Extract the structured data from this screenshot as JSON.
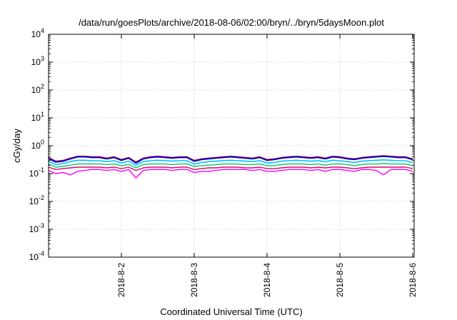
{
  "chart_data": {
    "type": "line",
    "title": "/data/run/goesPlots/archive/2018-08-06/02:00/bryn/../bryn/5daysMoon.plot",
    "xlabel": "Coordinated Universal Time (UTC)",
    "ylabel": "cGy/day",
    "yscale": "log",
    "ylim": [
      0.0001,
      10000
    ],
    "xlim": [
      0,
      5.02
    ],
    "grid": true,
    "legend": "none",
    "y_ticks": [
      {
        "value": 0.0001,
        "base": "10",
        "exp": "-4"
      },
      {
        "value": 0.001,
        "base": "10",
        "exp": "-3"
      },
      {
        "value": 0.01,
        "base": "10",
        "exp": "-2"
      },
      {
        "value": 0.1,
        "base": "10",
        "exp": "-1"
      },
      {
        "value": 1,
        "base": "10",
        "exp": "0"
      },
      {
        "value": 10,
        "base": "10",
        "exp": "1"
      },
      {
        "value": 100,
        "base": "10",
        "exp": "2"
      },
      {
        "value": 1000,
        "base": "10",
        "exp": "3"
      },
      {
        "value": 10000,
        "base": "10",
        "exp": "4"
      }
    ],
    "x_ticks": [
      {
        "value": 1,
        "label": "2018-8-2"
      },
      {
        "value": 2,
        "label": "2018-8-3"
      },
      {
        "value": 3,
        "label": "2018-8-4"
      },
      {
        "value": 4,
        "label": "2018-8-5"
      },
      {
        "value": 5,
        "label": "2018-8-6"
      }
    ],
    "series": [
      {
        "color": "#ff00ff",
        "width": 1.4,
        "x": [
          0,
          0.1,
          0.2,
          0.3,
          0.4,
          0.5,
          0.6,
          0.7,
          0.8,
          0.9,
          1.0,
          1.1,
          1.2,
          1.3,
          1.4,
          1.5,
          1.6,
          1.7,
          1.8,
          1.9,
          2.0,
          2.1,
          2.2,
          2.3,
          2.4,
          2.5,
          2.6,
          2.7,
          2.8,
          2.9,
          3.0,
          3.1,
          3.2,
          3.3,
          3.4,
          3.5,
          3.6,
          3.7,
          3.8,
          3.9,
          4.0,
          4.1,
          4.2,
          4.3,
          4.4,
          4.5,
          4.6,
          4.7,
          4.8,
          4.9,
          5.0
        ],
        "y": [
          0.13,
          0.1,
          0.11,
          0.09,
          0.12,
          0.13,
          0.14,
          0.14,
          0.13,
          0.14,
          0.12,
          0.14,
          0.07,
          0.13,
          0.14,
          0.14,
          0.14,
          0.13,
          0.14,
          0.14,
          0.11,
          0.12,
          0.12,
          0.13,
          0.14,
          0.14,
          0.14,
          0.14,
          0.13,
          0.14,
          0.12,
          0.12,
          0.13,
          0.14,
          0.14,
          0.14,
          0.13,
          0.14,
          0.12,
          0.14,
          0.14,
          0.13,
          0.12,
          0.14,
          0.14,
          0.13,
          0.09,
          0.14,
          0.14,
          0.14,
          0.12
        ]
      },
      {
        "color": "#ff0000",
        "width": 1.4,
        "x": [
          0,
          0.1,
          0.2,
          0.3,
          0.4,
          0.5,
          0.6,
          0.7,
          0.8,
          0.9,
          1.0,
          1.1,
          1.2,
          1.3,
          1.4,
          1.5,
          1.6,
          1.7,
          1.8,
          1.9,
          2.0,
          2.1,
          2.2,
          2.3,
          2.4,
          2.5,
          2.6,
          2.7,
          2.8,
          2.9,
          3.0,
          3.1,
          3.2,
          3.3,
          3.4,
          3.5,
          3.6,
          3.7,
          3.8,
          3.9,
          4.0,
          4.1,
          4.2,
          4.3,
          4.4,
          4.5,
          4.6,
          4.7,
          4.8,
          4.9,
          5.0
        ],
        "y": [
          0.38,
          0.28,
          0.3,
          0.36,
          0.42,
          0.42,
          0.4,
          0.4,
          0.36,
          0.4,
          0.32,
          0.38,
          0.26,
          0.36,
          0.4,
          0.42,
          0.4,
          0.38,
          0.4,
          0.4,
          0.3,
          0.34,
          0.36,
          0.38,
          0.4,
          0.42,
          0.4,
          0.38,
          0.36,
          0.4,
          0.32,
          0.34,
          0.38,
          0.4,
          0.42,
          0.4,
          0.38,
          0.4,
          0.36,
          0.42,
          0.4,
          0.36,
          0.34,
          0.38,
          0.4,
          0.42,
          0.44,
          0.42,
          0.4,
          0.4,
          0.34
        ]
      },
      {
        "color": "#0000cc",
        "width": 2,
        "x": [
          0,
          0.1,
          0.2,
          0.3,
          0.4,
          0.5,
          0.6,
          0.7,
          0.8,
          0.9,
          1.0,
          1.1,
          1.2,
          1.3,
          1.4,
          1.5,
          1.6,
          1.7,
          1.8,
          1.9,
          2.0,
          2.1,
          2.2,
          2.3,
          2.4,
          2.5,
          2.6,
          2.7,
          2.8,
          2.9,
          3.0,
          3.1,
          3.2,
          3.3,
          3.4,
          3.5,
          3.6,
          3.7,
          3.8,
          3.9,
          4.0,
          4.1,
          4.2,
          4.3,
          4.4,
          4.5,
          4.6,
          4.7,
          4.8,
          4.9,
          5.0
        ],
        "y": [
          0.35,
          0.26,
          0.28,
          0.34,
          0.4,
          0.4,
          0.38,
          0.38,
          0.34,
          0.38,
          0.3,
          0.36,
          0.24,
          0.34,
          0.38,
          0.4,
          0.38,
          0.36,
          0.38,
          0.38,
          0.28,
          0.32,
          0.34,
          0.36,
          0.38,
          0.4,
          0.38,
          0.36,
          0.34,
          0.38,
          0.3,
          0.32,
          0.36,
          0.38,
          0.4,
          0.38,
          0.36,
          0.38,
          0.34,
          0.4,
          0.38,
          0.34,
          0.32,
          0.36,
          0.38,
          0.4,
          0.42,
          0.4,
          0.38,
          0.38,
          0.32
        ]
      },
      {
        "color": "#00bfff",
        "width": 1.6,
        "x": [
          0,
          0.1,
          0.2,
          0.3,
          0.4,
          0.5,
          0.6,
          0.7,
          0.8,
          0.9,
          1.0,
          1.1,
          1.2,
          1.3,
          1.4,
          1.5,
          1.6,
          1.7,
          1.8,
          1.9,
          2.0,
          2.1,
          2.2,
          2.3,
          2.4,
          2.5,
          2.6,
          2.7,
          2.8,
          2.9,
          3.0,
          3.1,
          3.2,
          3.3,
          3.4,
          3.5,
          3.6,
          3.7,
          3.8,
          3.9,
          4.0,
          4.1,
          4.2,
          4.3,
          4.4,
          4.5,
          4.6,
          4.7,
          4.8,
          4.9,
          5.0
        ],
        "y": [
          0.28,
          0.21,
          0.23,
          0.27,
          0.3,
          0.3,
          0.29,
          0.29,
          0.27,
          0.29,
          0.24,
          0.28,
          0.2,
          0.27,
          0.29,
          0.3,
          0.29,
          0.28,
          0.29,
          0.29,
          0.22,
          0.25,
          0.27,
          0.28,
          0.29,
          0.3,
          0.29,
          0.28,
          0.27,
          0.29,
          0.24,
          0.25,
          0.28,
          0.29,
          0.3,
          0.29,
          0.28,
          0.29,
          0.27,
          0.3,
          0.29,
          0.27,
          0.25,
          0.28,
          0.29,
          0.3,
          0.31,
          0.3,
          0.29,
          0.29,
          0.25
        ]
      },
      {
        "color": "#00cc66",
        "width": 1.4,
        "x": [
          0,
          0.1,
          0.2,
          0.3,
          0.4,
          0.5,
          0.6,
          0.7,
          0.8,
          0.9,
          1.0,
          1.1,
          1.2,
          1.3,
          1.4,
          1.5,
          1.6,
          1.7,
          1.8,
          1.9,
          2.0,
          2.1,
          2.2,
          2.3,
          2.4,
          2.5,
          2.6,
          2.7,
          2.8,
          2.9,
          3.0,
          3.1,
          3.2,
          3.3,
          3.4,
          3.5,
          3.6,
          3.7,
          3.8,
          3.9,
          4.0,
          4.1,
          4.2,
          4.3,
          4.4,
          4.5,
          4.6,
          4.7,
          4.8,
          4.9,
          5.0
        ],
        "y": [
          0.22,
          0.17,
          0.18,
          0.2,
          0.22,
          0.22,
          0.22,
          0.22,
          0.21,
          0.22,
          0.19,
          0.21,
          0.16,
          0.21,
          0.22,
          0.22,
          0.22,
          0.21,
          0.22,
          0.22,
          0.18,
          0.19,
          0.2,
          0.21,
          0.22,
          0.22,
          0.22,
          0.21,
          0.21,
          0.22,
          0.19,
          0.19,
          0.21,
          0.22,
          0.22,
          0.22,
          0.21,
          0.22,
          0.2,
          0.22,
          0.22,
          0.21,
          0.19,
          0.21,
          0.22,
          0.22,
          0.23,
          0.22,
          0.22,
          0.22,
          0.19
        ]
      },
      {
        "color": "#dd0077",
        "width": 1.4,
        "x": [
          0,
          0.1,
          0.2,
          0.3,
          0.4,
          0.5,
          0.6,
          0.7,
          0.8,
          0.9,
          1.0,
          1.1,
          1.2,
          1.3,
          1.4,
          1.5,
          1.6,
          1.7,
          1.8,
          1.9,
          2.0,
          2.1,
          2.2,
          2.3,
          2.4,
          2.5,
          2.6,
          2.7,
          2.8,
          2.9,
          3.0,
          3.1,
          3.2,
          3.3,
          3.4,
          3.5,
          3.6,
          3.7,
          3.8,
          3.9,
          4.0,
          4.1,
          4.2,
          4.3,
          4.4,
          4.5,
          4.6,
          4.7,
          4.8,
          4.9,
          5.0
        ],
        "y": [
          0.17,
          0.14,
          0.15,
          0.16,
          0.17,
          0.17,
          0.17,
          0.17,
          0.16,
          0.17,
          0.15,
          0.17,
          0.13,
          0.16,
          0.17,
          0.17,
          0.17,
          0.16,
          0.17,
          0.17,
          0.14,
          0.15,
          0.16,
          0.16,
          0.17,
          0.17,
          0.17,
          0.16,
          0.16,
          0.17,
          0.15,
          0.15,
          0.16,
          0.17,
          0.17,
          0.17,
          0.16,
          0.17,
          0.16,
          0.17,
          0.17,
          0.16,
          0.15,
          0.16,
          0.17,
          0.17,
          0.17,
          0.17,
          0.17,
          0.17,
          0.15
        ]
      }
    ]
  }
}
